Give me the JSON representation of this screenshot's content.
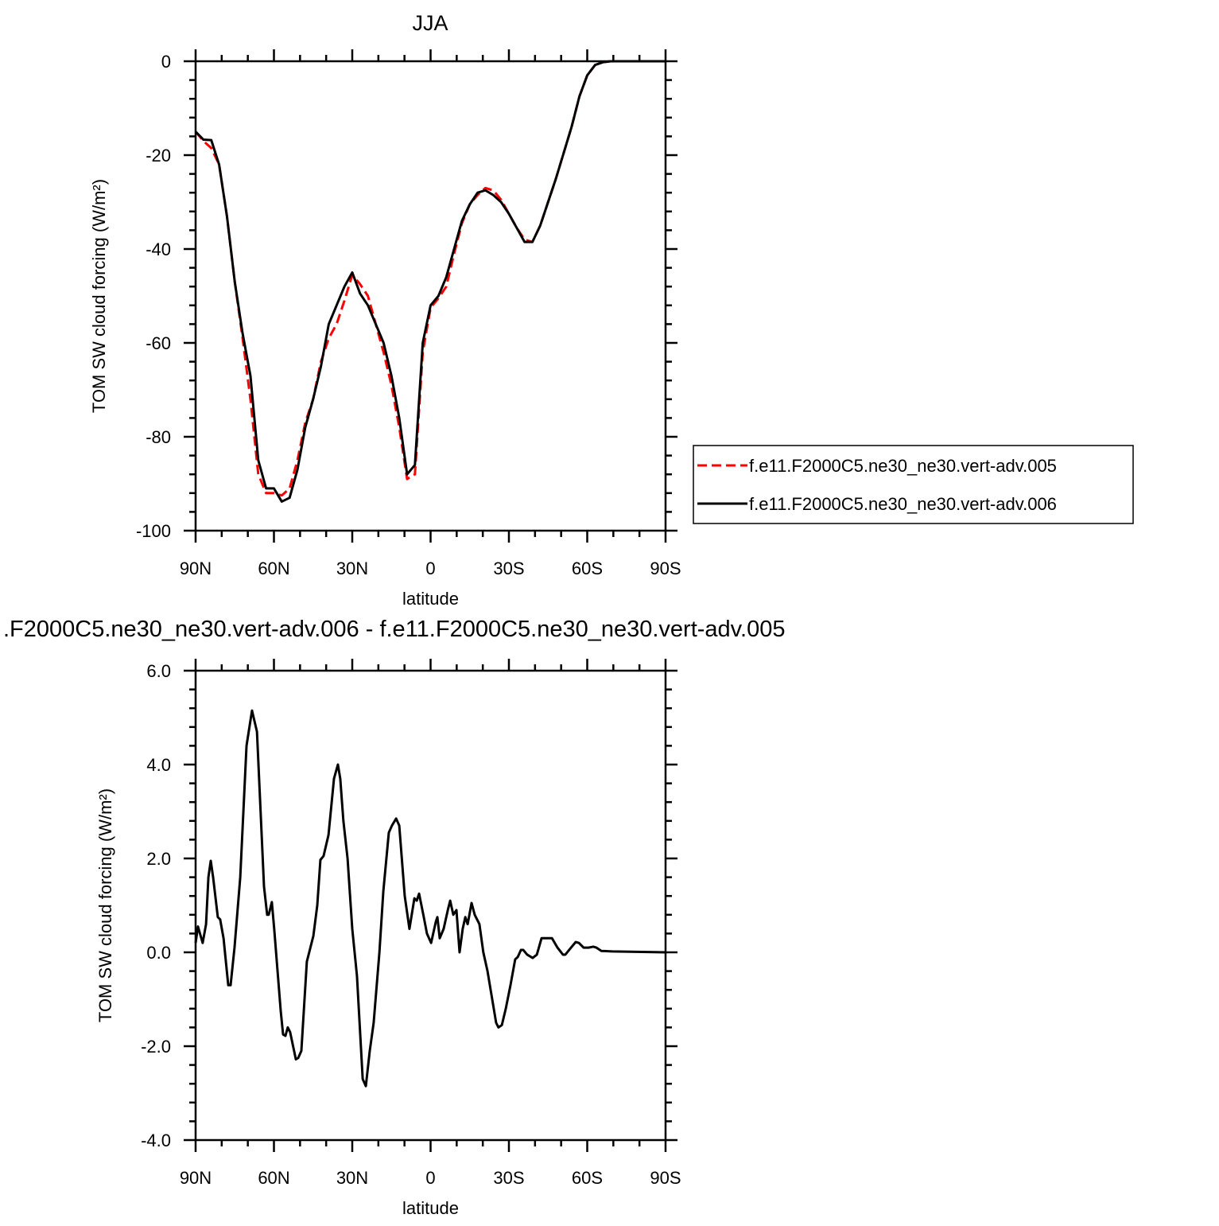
{
  "chart_data": [
    {
      "type": "line",
      "title": "JJA",
      "xlabel": "latitude",
      "ylabel": "TOM SW cloud forcing (W/m²)",
      "x": [
        90,
        87,
        84,
        81,
        78,
        75,
        72,
        69,
        66,
        63,
        60,
        57,
        54,
        51,
        48,
        45,
        42,
        39,
        36,
        33,
        30,
        27,
        24,
        21,
        18,
        15,
        12,
        9,
        6,
        3,
        0,
        -3,
        -6,
        -9,
        -12,
        -15,
        -18,
        -21,
        -24,
        -27,
        -30,
        -33,
        -36,
        -39,
        -42,
        -45,
        -48,
        -51,
        -54,
        -57,
        -60,
        -63,
        -66,
        -69,
        -72,
        -75,
        -78,
        -81,
        -84,
        -87,
        -90
      ],
      "series": [
        {
          "name": "f.e11.F2000C5.ne30_ne30.vert-adv.005",
          "color": "#ff0000",
          "style": "dashed",
          "values": [
            -15,
            -17,
            -18.5,
            -22,
            -33,
            -47,
            -59,
            -72,
            -88,
            -92,
            -92,
            -92.5,
            -91,
            -85,
            -77,
            -72,
            -64,
            -59,
            -56,
            -51,
            -45.5,
            -47.5,
            -50,
            -56,
            -62,
            -69,
            -78,
            -89,
            -88,
            -62,
            -52.5,
            -50.5,
            -48,
            -41,
            -34.5,
            -30.5,
            -28.5,
            -27,
            -27.5,
            -29.5,
            -32.5,
            -35.5,
            -38,
            -38.5,
            -35,
            -30,
            -25,
            -19.5,
            -14,
            -7.5,
            -3,
            -0.8,
            -0.2,
            0,
            0,
            0,
            0,
            0,
            0,
            0,
            0
          ]
        },
        {
          "name": "f.e11.F2000C5.ne30_ne30.vert-adv.006",
          "color": "#000000",
          "style": "solid",
          "values": [
            -15,
            -16.7,
            -16.8,
            -22,
            -33,
            -47,
            -58,
            -67,
            -85,
            -91,
            -91,
            -93.8,
            -93,
            -87,
            -78,
            -72,
            -65,
            -56,
            -52,
            -48,
            -45,
            -49.5,
            -52,
            -56,
            -60,
            -67,
            -76,
            -88,
            -86,
            -60,
            -52,
            -50,
            -46,
            -40,
            -34,
            -30.5,
            -28,
            -27.5,
            -28.5,
            -30,
            -32.5,
            -35.5,
            -38.5,
            -38.5,
            -35,
            -30,
            -25,
            -19.5,
            -14,
            -7.5,
            -3,
            -0.8,
            -0.2,
            0,
            0,
            0,
            0,
            0,
            0,
            0,
            0
          ]
        }
      ],
      "xlim": [
        90,
        -90
      ],
      "xticks": [
        {
          "value": 90,
          "label": "90N"
        },
        {
          "value": 60,
          "label": "60N"
        },
        {
          "value": 30,
          "label": "30N"
        },
        0,
        {
          "value": -30,
          "label": "30S"
        },
        {
          "value": -60,
          "label": "60S"
        },
        {
          "value": -90,
          "label": "90S"
        }
      ],
      "ylim": [
        -100,
        0
      ],
      "yticks": [
        0,
        -20,
        -40,
        -60,
        -80,
        -100
      ],
      "legend": "right"
    },
    {
      "type": "line",
      "title": ".F2000C5.ne30_ne30.vert-adv.006 - f.e11.F2000C5.ne30_ne30.vert-adv.005",
      "xlabel": "latitude",
      "ylabel": "TOM SW cloud forcing (W/m²)",
      "x": [
        90,
        89.1,
        87.3,
        86.0,
        85.1,
        84.2,
        83.3,
        81.5,
        80.6,
        79.3,
        77.5,
        76.6,
        75.1,
        72.9,
        70.5,
        68.4,
        66.5,
        63.8,
        62.6,
        62.0,
        60.8,
        59.9,
        57.4,
        56.5,
        55.6,
        54.7,
        53.8,
        51.6,
        50.7,
        49.5,
        47.4,
        44.9,
        43.4,
        42.2,
        41.0,
        39.1,
        37.0,
        35.5,
        34.6,
        33.4,
        31.8,
        30.0,
        28.2,
        26.0,
        24.8,
        23.3,
        21.8,
        19.6,
        18.1,
        16.0,
        14.8,
        13.2,
        12.0,
        9.9,
        8.1,
        6.2,
        5.3,
        4.4,
        2.6,
        1.4,
        -0.2,
        -2.0,
        -2.6,
        -3.5,
        -5.0,
        -6.6,
        -7.5,
        -8.7,
        -9.9,
        -11.1,
        -12.3,
        -13.3,
        -14.2,
        -15.7,
        -16.9,
        -18.7,
        -20.2,
        -21.8,
        -23.6,
        -25.1,
        -26.0,
        -27.3,
        -28.8,
        -30.6,
        -32.4,
        -33.4,
        -34.6,
        -35.5,
        -37.0,
        -39.1,
        -40.7,
        -42.5,
        -44.7,
        -46.5,
        -48.6,
        -50.7,
        -51.6,
        -53.8,
        -55.6,
        -56.8,
        -58.6,
        -60.5,
        -62.3,
        -63.5,
        -65.4,
        -69.6,
        -90
      ],
      "series": [
        {
          "name": null,
          "color": "#000000",
          "style": "solid",
          "values": [
            0.2,
            0.55,
            0.2,
            0.6,
            1.6,
            1.95,
            1.6,
            0.75,
            0.7,
            0.3,
            -0.7,
            -0.7,
            0.1,
            1.6,
            4.4,
            5.15,
            4.7,
            1.4,
            0.8,
            0.8,
            1.07,
            0.5,
            -1.25,
            -1.75,
            -1.78,
            -1.6,
            -1.7,
            -2.28,
            -2.25,
            -2.1,
            -0.2,
            0.35,
            1.0,
            1.97,
            2.05,
            2.5,
            3.7,
            4.0,
            3.7,
            2.8,
            2.0,
            0.5,
            -0.5,
            -2.7,
            -2.85,
            -2.1,
            -1.5,
            0.0,
            1.3,
            2.55,
            2.7,
            2.85,
            2.7,
            1.2,
            0.5,
            1.15,
            1.1,
            1.25,
            0.75,
            0.4,
            0.2,
            0.65,
            0.75,
            0.3,
            0.5,
            0.9,
            1.1,
            0.8,
            0.9,
            0.0,
            0.5,
            0.75,
            0.6,
            1.05,
            0.8,
            0.6,
            0.0,
            -0.4,
            -1.0,
            -1.5,
            -1.6,
            -1.55,
            -1.2,
            -0.7,
            -0.15,
            -0.1,
            0.05,
            0.05,
            -0.05,
            -0.12,
            -0.05,
            0.3,
            0.3,
            0.3,
            0.1,
            -0.05,
            -0.05,
            0.1,
            0.22,
            0.2,
            0.1,
            0.1,
            0.12,
            0.1,
            0.03,
            0.02,
            0
          ]
        }
      ],
      "xlim": [
        90,
        -90
      ],
      "xticks": [
        {
          "value": 90,
          "label": "90N"
        },
        {
          "value": 60,
          "label": "60N"
        },
        {
          "value": 30,
          "label": "30N"
        },
        0,
        {
          "value": -30,
          "label": "30S"
        },
        {
          "value": -60,
          "label": "60S"
        },
        {
          "value": -90,
          "label": "90S"
        }
      ],
      "ylim": [
        -4,
        6
      ],
      "yticks": [
        {
          "value": 6,
          "label": "6.0"
        },
        {
          "value": 4,
          "label": "4.0"
        },
        {
          "value": 2,
          "label": "2.0"
        },
        {
          "value": 0,
          "label": "0.0"
        },
        {
          "value": -2,
          "label": "-2.0"
        },
        {
          "value": -4,
          "label": "-4.0"
        }
      ]
    }
  ]
}
